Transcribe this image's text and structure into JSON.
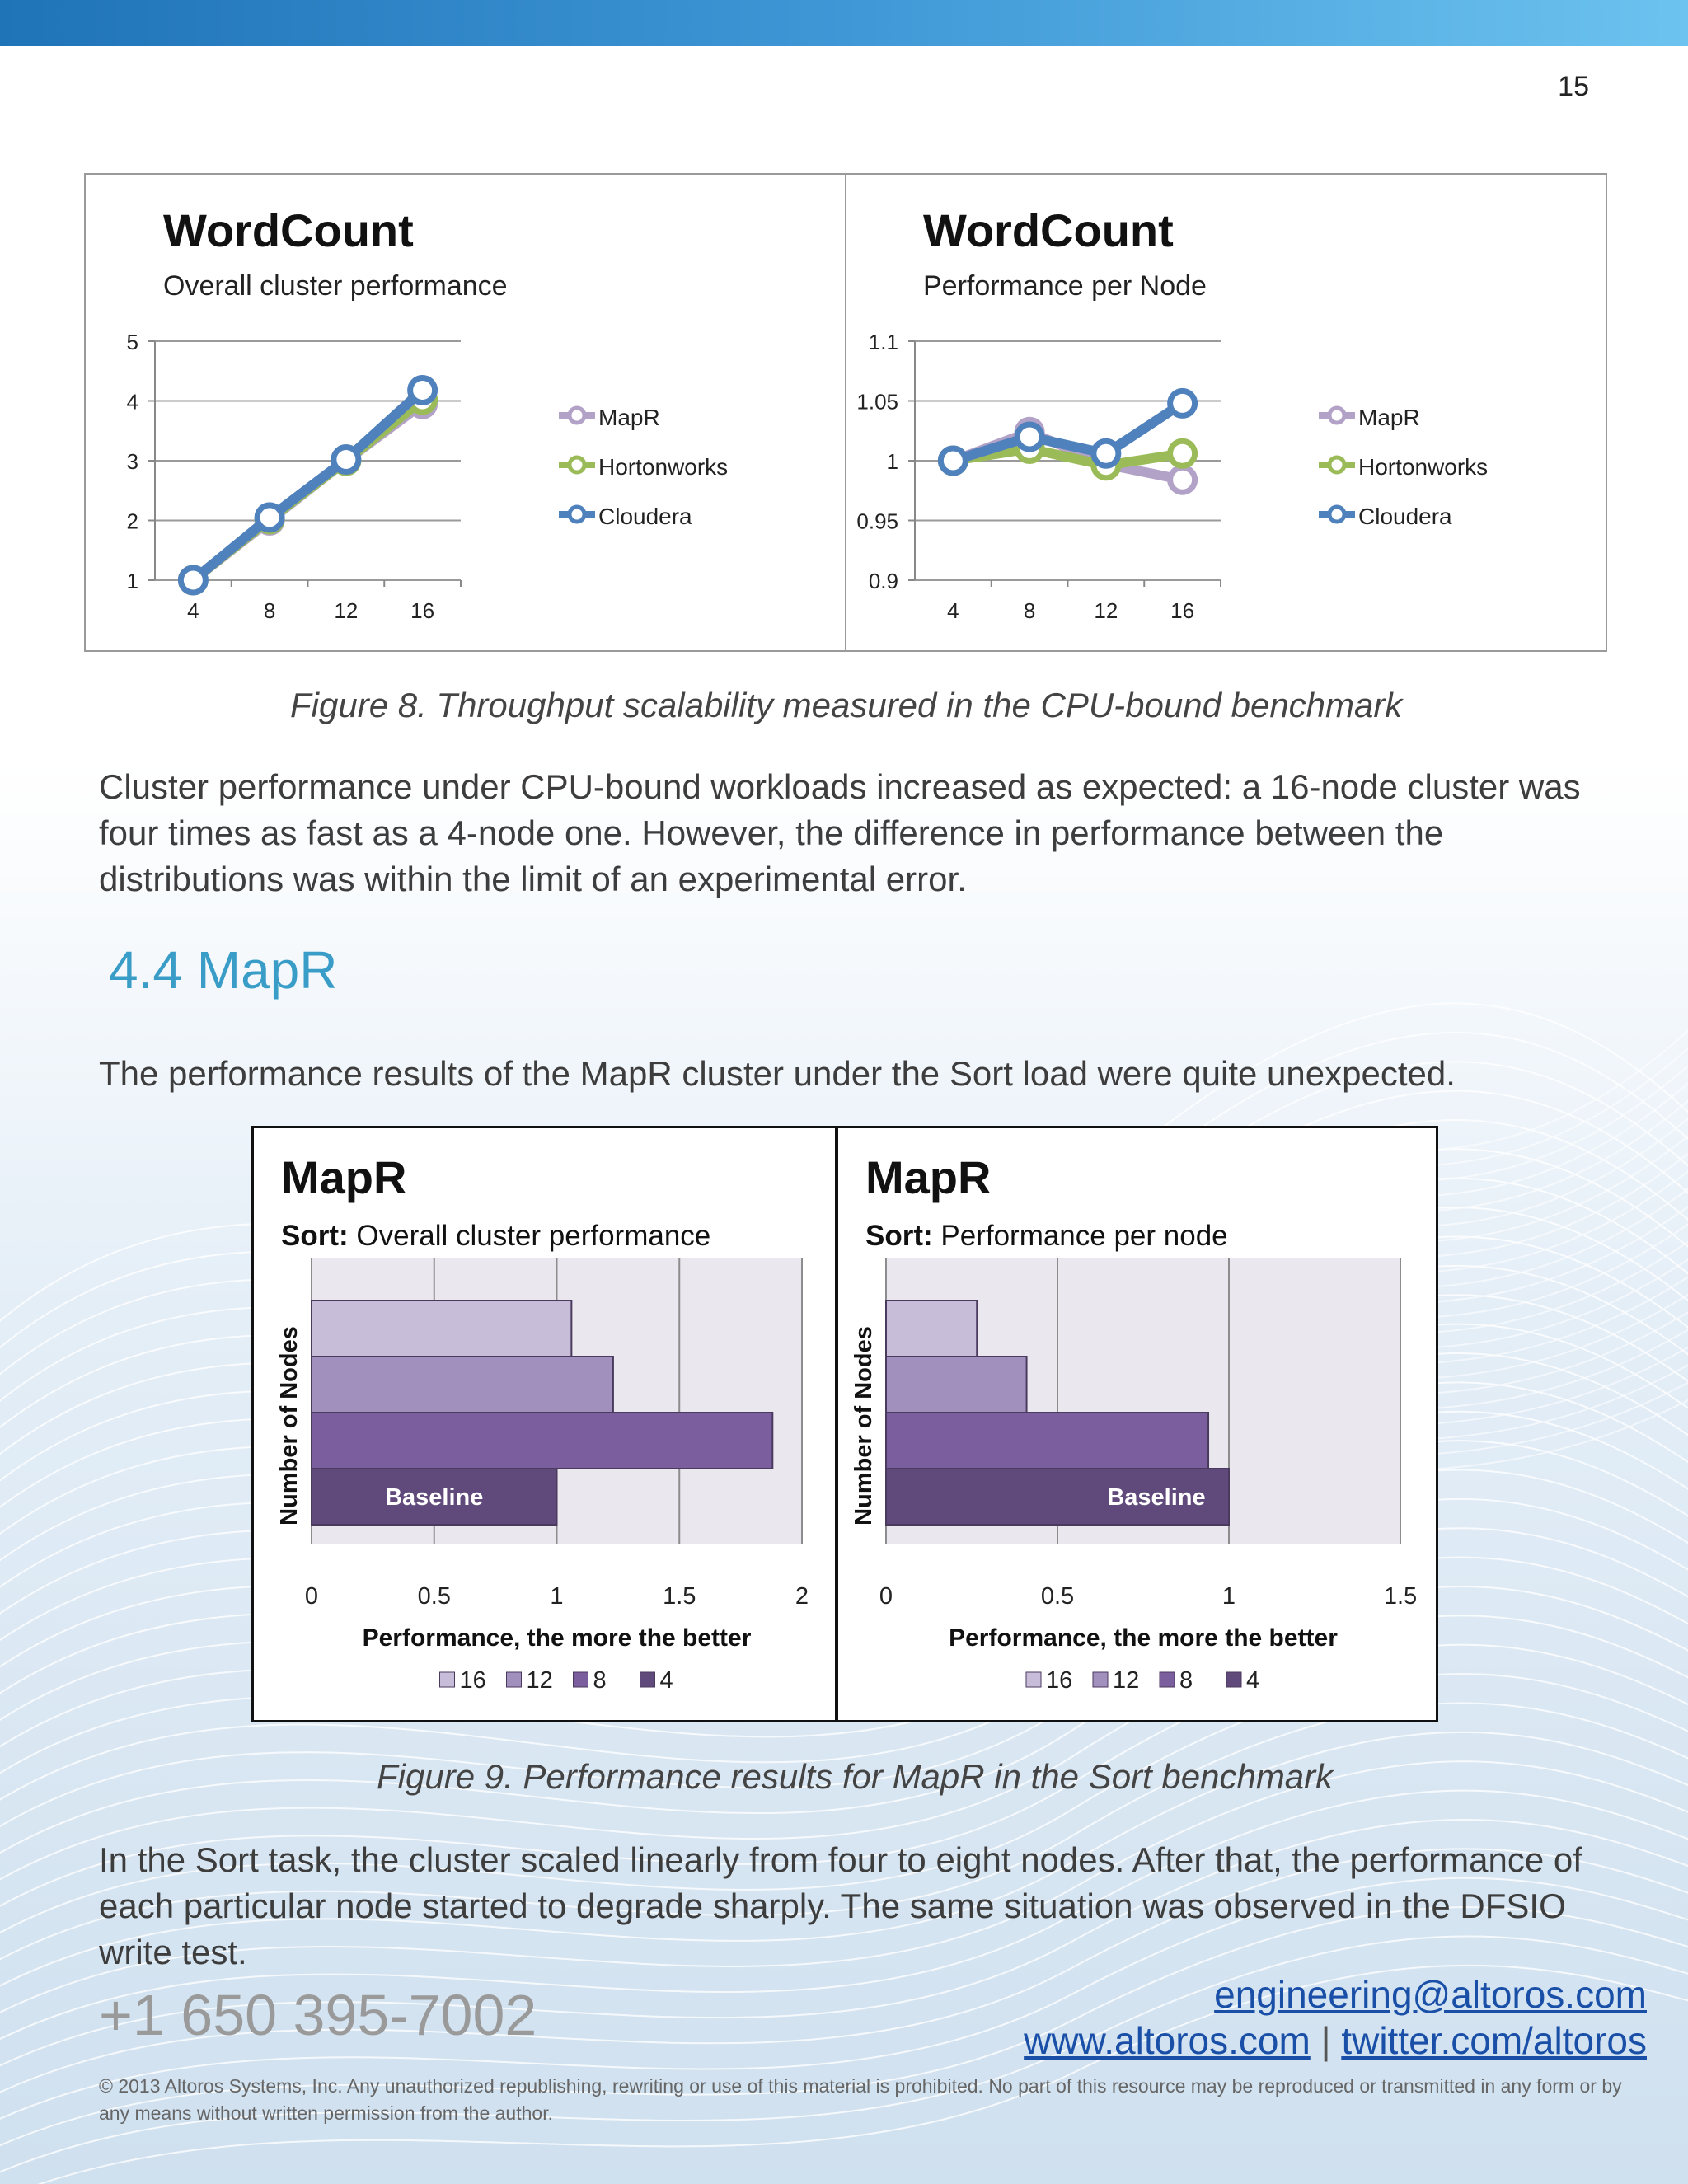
{
  "header": {
    "page_number": "15"
  },
  "figure8": {
    "chart_data": [
      {
        "type": "line",
        "title": "WordCount",
        "subtitle": "Overall cluster performance",
        "x": [
          4,
          8,
          12,
          16
        ],
        "x_tick_labels": [
          "4",
          "8",
          "12",
          "16"
        ],
        "y_tick_labels": [
          "1",
          "2",
          "3",
          "4",
          "5"
        ],
        "ylim": [
          1,
          5
        ],
        "legend_position": "right",
        "series": [
          {
            "name": "MapR",
            "color": "#b3a2c7",
            "values": [
              1,
              2.0,
              3.0,
              3.95
            ]
          },
          {
            "name": "Hortonworks",
            "color": "#9bbb59",
            "values": [
              1,
              2.02,
              3.0,
              4.02
            ]
          },
          {
            "name": "Cloudera",
            "color": "#4f81bd",
            "values": [
              1,
              2.05,
              3.02,
              4.18
            ]
          }
        ]
      },
      {
        "type": "line",
        "title": "WordCount",
        "subtitle": "Performance per Node",
        "x": [
          4,
          8,
          12,
          16
        ],
        "x_tick_labels": [
          "4",
          "8",
          "12",
          "16"
        ],
        "y_tick_labels": [
          "0.9",
          "0.95",
          "1",
          "1.05",
          "1.1"
        ],
        "ylim": [
          0.9,
          1.1
        ],
        "legend_position": "right",
        "series": [
          {
            "name": "MapR",
            "color": "#b3a2c7",
            "values": [
              1,
              1.024,
              0.997,
              0.984
            ]
          },
          {
            "name": "Hortonworks",
            "color": "#9bbb59",
            "values": [
              1,
              1.01,
              0.996,
              1.006
            ]
          },
          {
            "name": "Cloudera",
            "color": "#4f81bd",
            "values": [
              1,
              1.02,
              1.006,
              1.048
            ]
          }
        ]
      }
    ],
    "caption": "Figure 8. Throughput scalability measured in the CPU-bound benchmark"
  },
  "para1": "Cluster performance under CPU-bound workloads increased as expected: a 16-node cluster was four times as fast as a 4-node one. However, the difference in performance between the distributions was within the limit of an experimental error.",
  "section": {
    "heading": "4.4 MapR"
  },
  "para2": "The performance results of the MapR cluster under the Sort load were quite unexpected.",
  "figure9": {
    "chart_data": [
      {
        "type": "bar",
        "orientation": "horizontal",
        "title": "MapR",
        "subtitle_bold": "Sort:",
        "subtitle_rest": " Overall cluster performance",
        "xlabel": "Performance, the more the better",
        "ylabel": "Number of Nodes",
        "xlim": [
          0,
          2
        ],
        "x_tick_labels": [
          "0",
          "0.5",
          "1",
          "1.5",
          "2"
        ],
        "categories": [
          "16",
          "12",
          "8",
          "4"
        ],
        "values": [
          1.06,
          1.23,
          1.88,
          1.0
        ],
        "colors": [
          "#c8bdd9",
          "#a18fbe",
          "#7a5e9d",
          "#604a7b"
        ],
        "annotation": "Baseline",
        "legend": [
          "16",
          "12",
          "8",
          "4"
        ]
      },
      {
        "type": "bar",
        "orientation": "horizontal",
        "title": "MapR",
        "subtitle_bold": "Sort:",
        "subtitle_rest": " Performance per node",
        "xlabel": "Performance, the more the better",
        "ylabel": "Number of Nodes",
        "xlim": [
          0,
          1.5
        ],
        "x_tick_labels": [
          "0",
          "0.5",
          "1",
          "1.5"
        ],
        "categories": [
          "16",
          "12",
          "8",
          "4"
        ],
        "values": [
          0.265,
          0.41,
          0.94,
          1.0
        ],
        "colors": [
          "#c8bdd9",
          "#a18fbe",
          "#7a5e9d",
          "#604a7b"
        ],
        "annotation": "Baseline",
        "legend": [
          "16",
          "12",
          "8",
          "4"
        ]
      }
    ],
    "caption": "Figure 9. Performance results for MapR in the Sort benchmark"
  },
  "para3": "In the Sort task, the cluster scaled linearly from four to eight nodes. After that, the performance of each particular node started to degrade sharply. The same situation was observed in the DFSIO write test.",
  "footer": {
    "phone": "+1 650 395-7002",
    "email": "engineering@altoros.com",
    "website": "www.altoros.com",
    "separator": "|",
    "twitter": "twitter.com/altoros",
    "copyright": "© 2013 Altoros Systems, Inc. Any unauthorized republishing, rewriting or use of this material is prohibited. No part of this resource may be reproduced or transmitted in any form or by any means without written permission from the author."
  }
}
